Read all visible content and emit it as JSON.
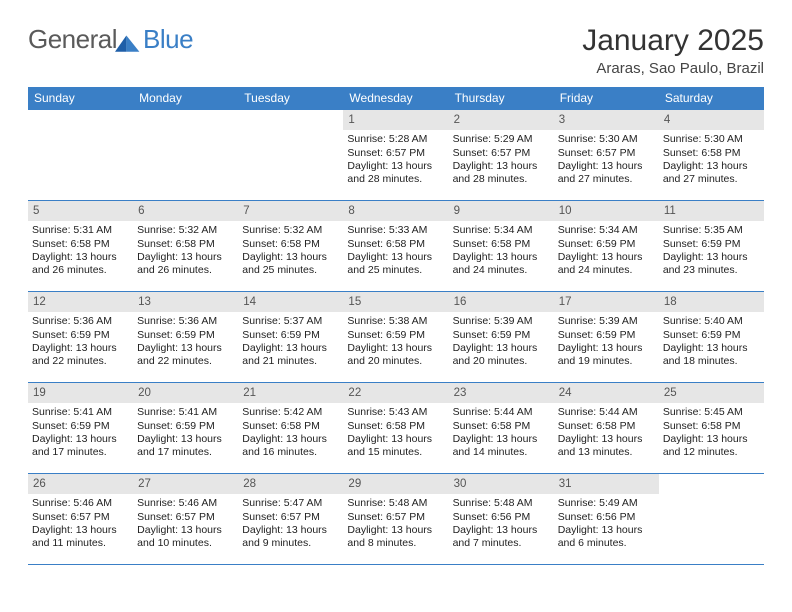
{
  "logo": {
    "word1": "General",
    "word2": "Blue"
  },
  "title": {
    "month": "January 2025",
    "location": "Araras, Sao Paulo, Brazil"
  },
  "colors": {
    "header_bg": "#3a7fc6",
    "header_fg": "#ffffff",
    "daynum_bg": "#e6e6e6",
    "rule": "#3a7fc6",
    "page_bg": "#ffffff"
  },
  "weekdays": [
    "Sunday",
    "Monday",
    "Tuesday",
    "Wednesday",
    "Thursday",
    "Friday",
    "Saturday"
  ],
  "weeks": [
    [
      null,
      null,
      null,
      {
        "n": "1",
        "rise": "5:28 AM",
        "set": "6:57 PM",
        "dh": 13,
        "dm": 28
      },
      {
        "n": "2",
        "rise": "5:29 AM",
        "set": "6:57 PM",
        "dh": 13,
        "dm": 28
      },
      {
        "n": "3",
        "rise": "5:30 AM",
        "set": "6:57 PM",
        "dh": 13,
        "dm": 27
      },
      {
        "n": "4",
        "rise": "5:30 AM",
        "set": "6:58 PM",
        "dh": 13,
        "dm": 27
      }
    ],
    [
      {
        "n": "5",
        "rise": "5:31 AM",
        "set": "6:58 PM",
        "dh": 13,
        "dm": 26
      },
      {
        "n": "6",
        "rise": "5:32 AM",
        "set": "6:58 PM",
        "dh": 13,
        "dm": 26
      },
      {
        "n": "7",
        "rise": "5:32 AM",
        "set": "6:58 PM",
        "dh": 13,
        "dm": 25
      },
      {
        "n": "8",
        "rise": "5:33 AM",
        "set": "6:58 PM",
        "dh": 13,
        "dm": 25
      },
      {
        "n": "9",
        "rise": "5:34 AM",
        "set": "6:58 PM",
        "dh": 13,
        "dm": 24
      },
      {
        "n": "10",
        "rise": "5:34 AM",
        "set": "6:59 PM",
        "dh": 13,
        "dm": 24
      },
      {
        "n": "11",
        "rise": "5:35 AM",
        "set": "6:59 PM",
        "dh": 13,
        "dm": 23
      }
    ],
    [
      {
        "n": "12",
        "rise": "5:36 AM",
        "set": "6:59 PM",
        "dh": 13,
        "dm": 22
      },
      {
        "n": "13",
        "rise": "5:36 AM",
        "set": "6:59 PM",
        "dh": 13,
        "dm": 22
      },
      {
        "n": "14",
        "rise": "5:37 AM",
        "set": "6:59 PM",
        "dh": 13,
        "dm": 21
      },
      {
        "n": "15",
        "rise": "5:38 AM",
        "set": "6:59 PM",
        "dh": 13,
        "dm": 20
      },
      {
        "n": "16",
        "rise": "5:39 AM",
        "set": "6:59 PM",
        "dh": 13,
        "dm": 20
      },
      {
        "n": "17",
        "rise": "5:39 AM",
        "set": "6:59 PM",
        "dh": 13,
        "dm": 19
      },
      {
        "n": "18",
        "rise": "5:40 AM",
        "set": "6:59 PM",
        "dh": 13,
        "dm": 18
      }
    ],
    [
      {
        "n": "19",
        "rise": "5:41 AM",
        "set": "6:59 PM",
        "dh": 13,
        "dm": 17
      },
      {
        "n": "20",
        "rise": "5:41 AM",
        "set": "6:59 PM",
        "dh": 13,
        "dm": 17
      },
      {
        "n": "21",
        "rise": "5:42 AM",
        "set": "6:58 PM",
        "dh": 13,
        "dm": 16
      },
      {
        "n": "22",
        "rise": "5:43 AM",
        "set": "6:58 PM",
        "dh": 13,
        "dm": 15
      },
      {
        "n": "23",
        "rise": "5:44 AM",
        "set": "6:58 PM",
        "dh": 13,
        "dm": 14
      },
      {
        "n": "24",
        "rise": "5:44 AM",
        "set": "6:58 PM",
        "dh": 13,
        "dm": 13
      },
      {
        "n": "25",
        "rise": "5:45 AM",
        "set": "6:58 PM",
        "dh": 13,
        "dm": 12
      }
    ],
    [
      {
        "n": "26",
        "rise": "5:46 AM",
        "set": "6:57 PM",
        "dh": 13,
        "dm": 11
      },
      {
        "n": "27",
        "rise": "5:46 AM",
        "set": "6:57 PM",
        "dh": 13,
        "dm": 10
      },
      {
        "n": "28",
        "rise": "5:47 AM",
        "set": "6:57 PM",
        "dh": 13,
        "dm": 9
      },
      {
        "n": "29",
        "rise": "5:48 AM",
        "set": "6:57 PM",
        "dh": 13,
        "dm": 8
      },
      {
        "n": "30",
        "rise": "5:48 AM",
        "set": "6:56 PM",
        "dh": 13,
        "dm": 7
      },
      {
        "n": "31",
        "rise": "5:49 AM",
        "set": "6:56 PM",
        "dh": 13,
        "dm": 6
      },
      null
    ]
  ],
  "labels": {
    "sunrise": "Sunrise:",
    "sunset": "Sunset:",
    "daylight_fmt": "Daylight: {h} hours and {m} minutes."
  }
}
